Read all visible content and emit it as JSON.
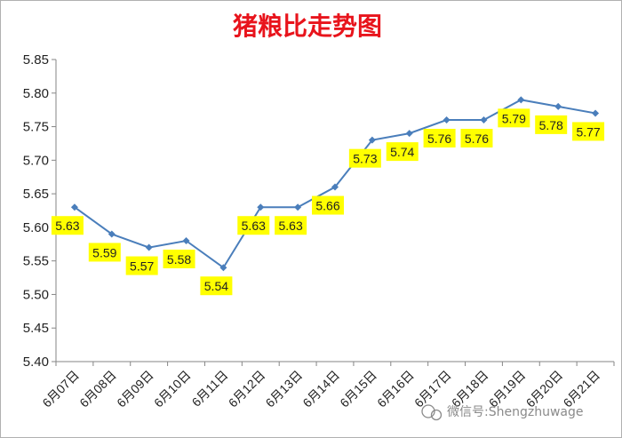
{
  "chart_data": {
    "type": "line",
    "title": "猪粮比走势图",
    "categories": [
      "6月07日",
      "6月08日",
      "6月09日",
      "6月10日",
      "6月11日",
      "6月12日",
      "6月13日",
      "6月14日",
      "6月15日",
      "6月16日",
      "6月17日",
      "6月18日",
      "6月19日",
      "6月20日",
      "6月21日"
    ],
    "values": [
      5.63,
      5.59,
      5.57,
      5.58,
      5.54,
      5.63,
      5.63,
      5.66,
      5.73,
      5.74,
      5.76,
      5.76,
      5.79,
      5.78,
      5.77
    ],
    "data_labels": [
      "5.63",
      "5.59",
      "5.57",
      "5.58",
      "5.54",
      "5.63",
      "5.63",
      "5.66",
      "5.73",
      "5.74",
      "5.76",
      "5.76",
      "5.79",
      "5.78",
      "5.77"
    ],
    "ylim": [
      5.4,
      5.85
    ],
    "yticks": [
      "5.40",
      "5.45",
      "5.50",
      "5.55",
      "5.60",
      "5.65",
      "5.70",
      "5.75",
      "5.80",
      "5.85"
    ],
    "xlabel": "",
    "ylabel": "",
    "grid": false,
    "legend": "none",
    "colors": {
      "line": "#4a7ebb",
      "label_bg": "#ffff00",
      "title": "#e8141c"
    }
  },
  "watermark": {
    "icon": "wechat-icon",
    "text": "微信号:Shengzhuwage"
  }
}
